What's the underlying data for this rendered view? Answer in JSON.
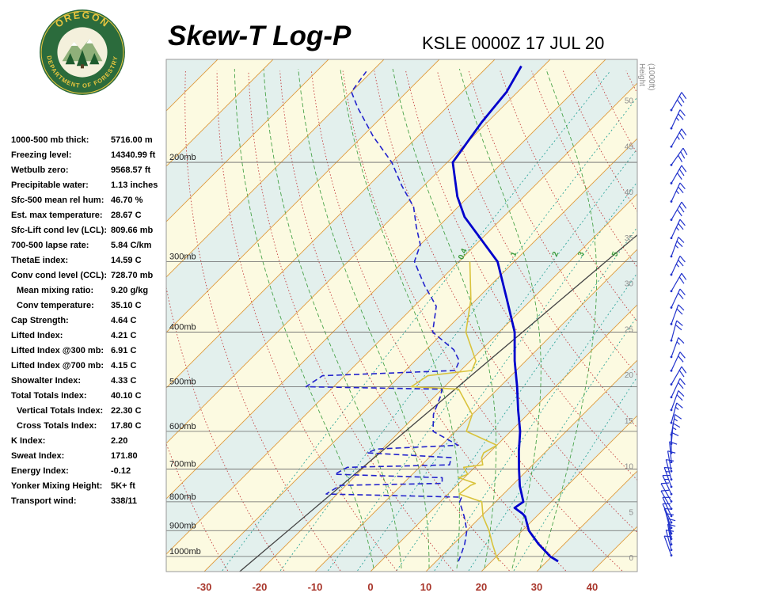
{
  "header": {
    "title": "Skew-T Log-P",
    "station": "KSLE 0000Z 17 JUL 20"
  },
  "logo": {
    "arc_top": "OREGON",
    "arc_bottom": "DEPARTMENT OF FORESTRY"
  },
  "indices": [
    {
      "label": "1000-500 mb thick:",
      "value": "5716.00 m",
      "indent": false
    },
    {
      "label": "Freezing level:",
      "value": "14340.99 ft",
      "indent": false
    },
    {
      "label": "Wetbulb zero:",
      "value": "9568.57 ft",
      "indent": false
    },
    {
      "label": "Precipitable water:",
      "value": "1.13 inches",
      "indent": false
    },
    {
      "label": "Sfc-500 mean rel hum:",
      "value": "46.70 %",
      "indent": false
    },
    {
      "label": "Est. max temperature:",
      "value": "28.67 C",
      "indent": false
    },
    {
      "label": "Sfc-Lift cond lev (LCL):",
      "value": "809.66 mb",
      "indent": false
    },
    {
      "label": "700-500 lapse rate:",
      "value": "5.84 C/km",
      "indent": false
    },
    {
      "label": "ThetaE index:",
      "value": "14.59 C",
      "indent": false
    },
    {
      "label": "Conv cond level (CCL):",
      "value": "728.70 mb",
      "indent": false
    },
    {
      "label": "Mean mixing ratio:",
      "value": "9.20 g/kg",
      "indent": true
    },
    {
      "label": "Conv temperature:",
      "value": "35.10 C",
      "indent": true
    },
    {
      "label": "Cap Strength:",
      "value": "4.64 C",
      "indent": false
    },
    {
      "label": "Lifted Index:",
      "value": "4.21 C",
      "indent": false
    },
    {
      "label": "Lifted Index @300 mb:",
      "value": "6.91 C",
      "indent": false
    },
    {
      "label": "Lifted Index @700 mb:",
      "value": "4.15 C",
      "indent": false
    },
    {
      "label": "Showalter Index:",
      "value": "4.33 C",
      "indent": false
    },
    {
      "label": "Total Totals Index:",
      "value": "40.10 C",
      "indent": false
    },
    {
      "label": "Vertical Totals Index:",
      "value": "22.30 C",
      "indent": true
    },
    {
      "label": "Cross Totals Index:",
      "value": "17.80 C",
      "indent": true
    },
    {
      "label": "K Index:",
      "value": "2.20",
      "indent": false
    },
    {
      "label": "Sweat Index:",
      "value": "171.80",
      "indent": false
    },
    {
      "label": "Energy Index:",
      "value": "-0.12",
      "indent": false
    },
    {
      "label": "Yonker Mixing Height:",
      "value": "5K+ ft",
      "indent": false
    },
    {
      "label": "Transport wind:",
      "value": "338/11",
      "indent": false
    }
  ],
  "chart_data": {
    "type": "skewt-log-p",
    "title": "Skew-T Log-P",
    "station_label": "KSLE 0000Z 17 JUL 20",
    "pressure_ticks_mb": [
      200,
      300,
      400,
      500,
      600,
      700,
      800,
      900,
      1000
    ],
    "pressure_tick_suffix": "mb",
    "temp_ticks_c": [
      -30,
      -20,
      -10,
      0,
      10,
      20,
      30,
      40
    ],
    "p_top_mb": 132,
    "p_bottom_mb": 1065,
    "height_axis": {
      "label": "Height (1000ft)",
      "ticks": [
        0,
        5,
        10,
        15,
        20,
        25,
        30,
        35,
        40,
        45,
        50
      ]
    },
    "mixing_ratio_lines_gkg": [
      0.4,
      1,
      2,
      3,
      5,
      8,
      12,
      20
    ],
    "mixing_ratio_labels": [
      "0.4",
      "1",
      "2",
      "3",
      "5"
    ],
    "dry_adiabats_c": {
      "min": -30,
      "max": 200,
      "step": 10
    },
    "moist_adiabats_c": [
      0,
      5,
      10,
      15,
      20,
      25,
      30
    ],
    "isotherm_step_c": 10,
    "series": {
      "temperature": {
        "name": "Temperature (C)",
        "color": "#0000CC",
        "points": [
          [
            1020,
            32
          ],
          [
            1000,
            29.7
          ],
          [
            950,
            25.3
          ],
          [
            900,
            21.2
          ],
          [
            850,
            18
          ],
          [
            840,
            17
          ],
          [
            820,
            14.5
          ],
          [
            800,
            15
          ],
          [
            750,
            11.5
          ],
          [
            700,
            8.3
          ],
          [
            650,
            5
          ],
          [
            600,
            1.7
          ],
          [
            550,
            -2.5
          ],
          [
            500,
            -6.9
          ],
          [
            450,
            -12
          ],
          [
            400,
            -17.2
          ],
          [
            350,
            -24.5
          ],
          [
            300,
            -33
          ],
          [
            250,
            -47
          ],
          [
            230,
            -52
          ],
          [
            200,
            -59
          ],
          [
            170,
            -61
          ],
          [
            150,
            -62
          ],
          [
            135,
            -64
          ]
        ]
      },
      "dewpoint": {
        "name": "Dewpoint (C)",
        "color": "#2222CC",
        "points": [
          [
            1020,
            14
          ],
          [
            1000,
            13.5
          ],
          [
            950,
            12
          ],
          [
            900,
            10
          ],
          [
            850,
            7
          ],
          [
            800,
            3.5
          ],
          [
            785,
            3
          ],
          [
            775,
            -22
          ],
          [
            748,
            -21
          ],
          [
            742,
            -3
          ],
          [
            725,
            -4
          ],
          [
            715,
            -24
          ],
          [
            695,
            -23
          ],
          [
            688,
            -5
          ],
          [
            668,
            -6
          ],
          [
            655,
            -22
          ],
          [
            645,
            -21
          ],
          [
            635,
            -7
          ],
          [
            600,
            -14
          ],
          [
            560,
            -17
          ],
          [
            520,
            -19
          ],
          [
            505,
            -20
          ],
          [
            500,
            -45
          ],
          [
            478,
            -44
          ],
          [
            468,
            -21
          ],
          [
            450,
            -22
          ],
          [
            430,
            -25
          ],
          [
            400,
            -32
          ],
          [
            360,
            -36
          ],
          [
            330,
            -42
          ],
          [
            300,
            -48
          ],
          [
            280,
            -50
          ],
          [
            260,
            -54
          ],
          [
            240,
            -58
          ],
          [
            220,
            -64
          ],
          [
            200,
            -70
          ],
          [
            180,
            -78
          ],
          [
            160,
            -86
          ],
          [
            150,
            -90
          ],
          [
            138,
            -91
          ]
        ]
      },
      "wetbulb": {
        "name": "Wet-bulb (C)",
        "color": "#D9C33C",
        "points": [
          [
            1020,
            21.4
          ],
          [
            1000,
            20
          ],
          [
            950,
            17
          ],
          [
            900,
            14
          ],
          [
            850,
            10.4
          ],
          [
            800,
            7.5
          ],
          [
            775,
            2
          ],
          [
            748,
            2.5
          ],
          [
            742,
            3
          ],
          [
            725,
            -1
          ],
          [
            715,
            0
          ],
          [
            695,
            -2
          ],
          [
            688,
            1
          ],
          [
            668,
            -0.5
          ],
          [
            655,
            -1
          ],
          [
            635,
            0
          ],
          [
            600,
            -8
          ],
          [
            560,
            -10
          ],
          [
            505,
            -17
          ],
          [
            500,
            -26
          ],
          [
            478,
            -25
          ],
          [
            468,
            -18
          ],
          [
            450,
            -19
          ],
          [
            400,
            -26
          ],
          [
            350,
            -31
          ],
          [
            300,
            -38
          ]
        ]
      }
    },
    "reference_line": {
      "color": "#444444",
      "points": [
        [
          1064,
          -23.6
        ],
        [
          269,
          -12.6
        ]
      ]
    },
    "winds": {
      "color": "#2233CC",
      "barbs_h_dir_spd": [
        [
          0.3,
          340,
          10
        ],
        [
          0.9,
          345,
          10
        ],
        [
          1.5,
          350,
          10
        ],
        [
          2.1,
          350,
          12
        ],
        [
          2.7,
          345,
          10
        ],
        [
          3.3,
          340,
          10
        ],
        [
          3.9,
          335,
          10
        ],
        [
          4.6,
          335,
          12
        ],
        [
          5.4,
          330,
          10
        ],
        [
          6.2,
          330,
          12
        ],
        [
          7.0,
          335,
          15
        ],
        [
          7.8,
          340,
          15
        ],
        [
          8.6,
          345,
          12
        ],
        [
          9.5,
          350,
          10
        ],
        [
          10.5,
          355,
          10
        ],
        [
          11.5,
          0,
          12
        ],
        [
          12.5,
          5,
          15
        ],
        [
          13.5,
          10,
          15
        ],
        [
          14.8,
          15,
          15
        ],
        [
          16.2,
          20,
          18
        ],
        [
          17.6,
          25,
          20
        ],
        [
          19,
          30,
          20
        ],
        [
          20.5,
          25,
          18
        ],
        [
          22,
          20,
          15
        ],
        [
          23.8,
          15,
          18
        ],
        [
          25.6,
          20,
          20
        ],
        [
          27.4,
          25,
          22
        ],
        [
          29.2,
          30,
          22
        ],
        [
          31,
          25,
          25
        ],
        [
          33,
          20,
          25
        ],
        [
          35,
          25,
          25
        ],
        [
          37,
          30,
          28
        ],
        [
          39,
          25,
          25
        ],
        [
          41,
          30,
          28
        ],
        [
          43,
          35,
          30
        ],
        [
          45,
          30,
          25
        ],
        [
          47,
          25,
          25
        ],
        [
          49,
          30,
          28
        ]
      ]
    },
    "colors": {
      "band_a": "#FCFAE1",
      "band_b": "#E3F0ED",
      "isotherm": "#DE9A3C",
      "dry_adiabat": "#C44040",
      "moist_adiabat": "#49A349",
      "mixing": "#2FA59B",
      "mixing_label": "#3A9A3A",
      "pressure_line": "#666666",
      "axis_label": "#A8352A",
      "height_label": "#8C8C8C",
      "frame": "#999999"
    }
  }
}
